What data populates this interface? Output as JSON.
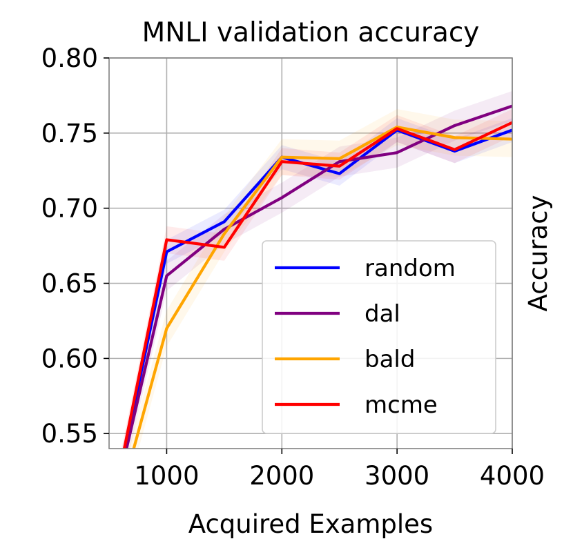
{
  "chart_data": {
    "type": "line",
    "title": "MNLI validation accuracy",
    "xlabel": "Acquired Examples",
    "ylabel": "Accuracy",
    "xlim": [
      500,
      4000
    ],
    "ylim": [
      0.54,
      0.8
    ],
    "xticks": [
      1000,
      2000,
      3000,
      4000
    ],
    "xtick_labels": [
      "1000",
      "2000",
      "3000",
      "4000"
    ],
    "yticks": [
      0.55,
      0.6,
      0.65,
      0.7,
      0.75,
      0.8
    ],
    "ytick_labels": [
      "0.55",
      "0.60",
      "0.65",
      "0.70",
      "0.75",
      "0.80"
    ],
    "grid": true,
    "legend_position": "lower-right",
    "x": [
      500,
      1000,
      1500,
      2000,
      2500,
      3000,
      3500,
      4000
    ],
    "series": [
      {
        "name": "random",
        "color": "#0000ff",
        "values": [
          0.49,
          0.671,
          0.691,
          0.734,
          0.723,
          0.752,
          0.738,
          0.752
        ],
        "band": 0.008
      },
      {
        "name": "dal",
        "color": "#800080",
        "values": [
          0.49,
          0.655,
          0.686,
          0.707,
          0.731,
          0.737,
          0.755,
          0.768
        ],
        "band": 0.01
      },
      {
        "name": "bald",
        "color": "#ffa500",
        "values": [
          0.48,
          0.62,
          0.683,
          0.734,
          0.733,
          0.754,
          0.747,
          0.746
        ],
        "band": 0.012
      },
      {
        "name": "mcme",
        "color": "#ff0000",
        "values": [
          0.49,
          0.679,
          0.674,
          0.731,
          0.728,
          0.753,
          0.739,
          0.757
        ],
        "band": 0.009
      }
    ]
  }
}
